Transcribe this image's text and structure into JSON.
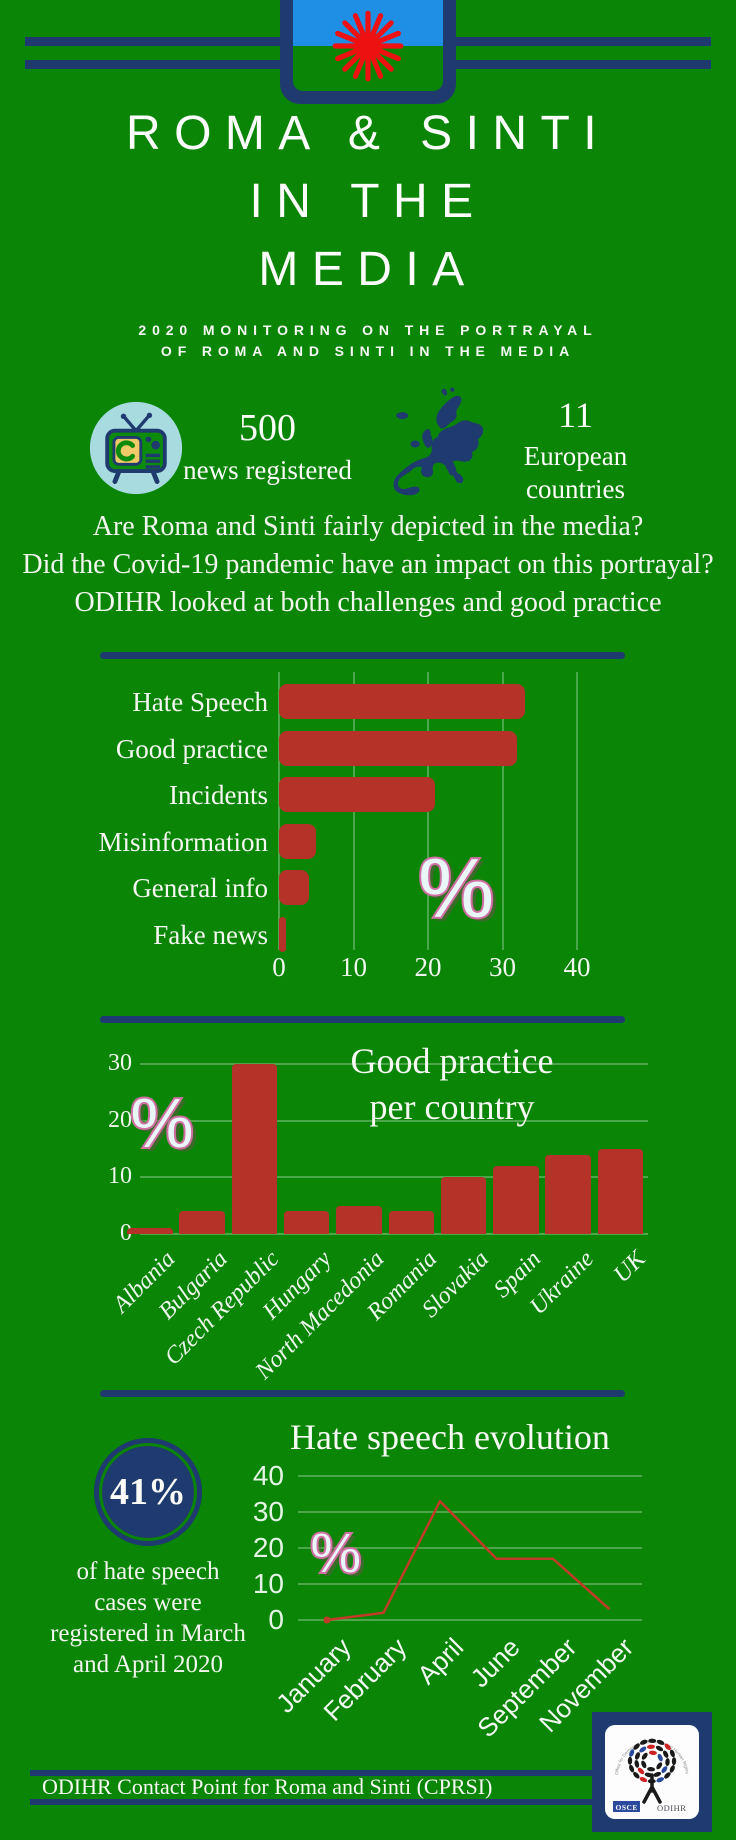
{
  "colors": {
    "background": "#0a8506",
    "navy": "#1e3a6e",
    "bar_red": "#b43228",
    "line_red": "#c23a28",
    "flag_blue": "#1f8fe6",
    "wheel_red": "#ee1111",
    "tv_circle": "#a8dbe0",
    "tv_screen_yellow": "#f2c968",
    "percent_fill": "#e9f6f8",
    "percent_outline": "#cf6fa2"
  },
  "header": {
    "flag": "roma-flag",
    "title_lines": [
      "ROMA & SINTI",
      "IN THE",
      "MEDIA"
    ],
    "subtitle_lines": [
      "2020 MONITORING ON THE PORTRAYAL",
      "OF ROMA AND SINTI IN THE MEDIA"
    ]
  },
  "stats": [
    {
      "icon": "tv-icon",
      "value": "500",
      "label": "news registered"
    },
    {
      "icon": "europe-map-icon",
      "value": "11",
      "label": "European countries"
    }
  ],
  "intro_lines": [
    "Are Roma and Sinti fairly depicted in the media?",
    "Did the Covid-19 pandemic have an impact on this portrayal?",
    "ODIHR looked at both challenges and good practice"
  ],
  "chart_data": [
    {
      "type": "bar",
      "orientation": "horizontal",
      "title": "",
      "unit": "%",
      "categories": [
        "Hate Speech",
        "Good practice",
        "Incidents",
        "Misinformation",
        "General info",
        "Fake news"
      ],
      "values": [
        33,
        32,
        21,
        5,
        4,
        1
      ],
      "xticks": [
        0,
        10,
        20,
        30,
        40
      ],
      "xlim": [
        0,
        45
      ],
      "grid": true,
      "bar_color": "#b43228"
    },
    {
      "type": "bar",
      "orientation": "vertical",
      "title_lines": [
        "Good practice",
        "per country"
      ],
      "unit": "%",
      "categories": [
        "Albania",
        "Bulgaria",
        "Czech Republic",
        "Hungary",
        "North Macedonia",
        "Romania",
        "Slovakia",
        "Spain",
        "Ukraine",
        "UK"
      ],
      "values": [
        1,
        4,
        30,
        4,
        5,
        4,
        10,
        12,
        14,
        15
      ],
      "yticks": [
        0,
        10,
        20,
        30
      ],
      "ylim": [
        0,
        32
      ],
      "grid": true,
      "bar_color": "#b43228"
    },
    {
      "type": "line",
      "title": "Hate speech evolution",
      "unit": "%",
      "x": [
        "January",
        "February",
        "April",
        "June",
        "September",
        "November"
      ],
      "values": [
        0,
        2,
        33,
        17,
        17,
        3
      ],
      "yticks": [
        0,
        10,
        20,
        30,
        40
      ],
      "ylim": [
        0,
        40
      ],
      "grid": true,
      "line_color": "#c23a28"
    }
  ],
  "highlight": {
    "value": "41%",
    "text": "of hate speech cases were registered in March and April 2020"
  },
  "footer": {
    "text": "ODIHR Contact Point for Roma and Sinti (CPRSI)",
    "logo": {
      "osce": "OSCE",
      "odihr": "ODIHR",
      "arc_text": "Office for Democratic Institutions and Human Rights"
    }
  }
}
